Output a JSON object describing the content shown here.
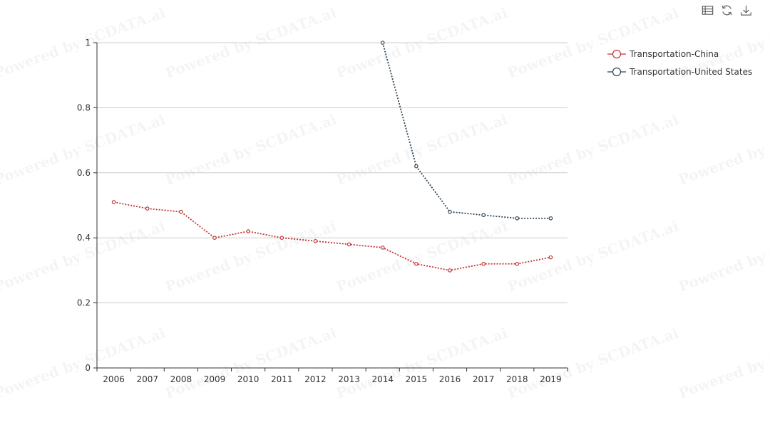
{
  "toolbar": {
    "icons": [
      "data-view-icon",
      "restore-icon",
      "download-icon"
    ]
  },
  "watermark": "Powered by SCDATA.ai",
  "chart_data": {
    "type": "line",
    "categories": [
      "2006",
      "2007",
      "2008",
      "2009",
      "2010",
      "2011",
      "2012",
      "2013",
      "2014",
      "2015",
      "2016",
      "2017",
      "2018",
      "2019"
    ],
    "y_ticks": [
      "0",
      "0.2",
      "0.4",
      "0.6",
      "0.8",
      "1"
    ],
    "ylim": [
      0,
      1
    ],
    "grid": true,
    "legend_position": "top-right",
    "series": [
      {
        "name": "Transportation-China",
        "color": "#c23531",
        "values": [
          0.51,
          0.49,
          0.48,
          0.4,
          0.42,
          0.4,
          0.39,
          0.38,
          0.37,
          0.32,
          0.3,
          0.32,
          0.32,
          0.34
        ]
      },
      {
        "name": "Transportation-United States",
        "color": "#2f4554",
        "values": [
          null,
          null,
          null,
          null,
          null,
          null,
          null,
          null,
          1.0,
          0.62,
          0.48,
          0.47,
          0.46,
          0.46
        ]
      }
    ]
  }
}
